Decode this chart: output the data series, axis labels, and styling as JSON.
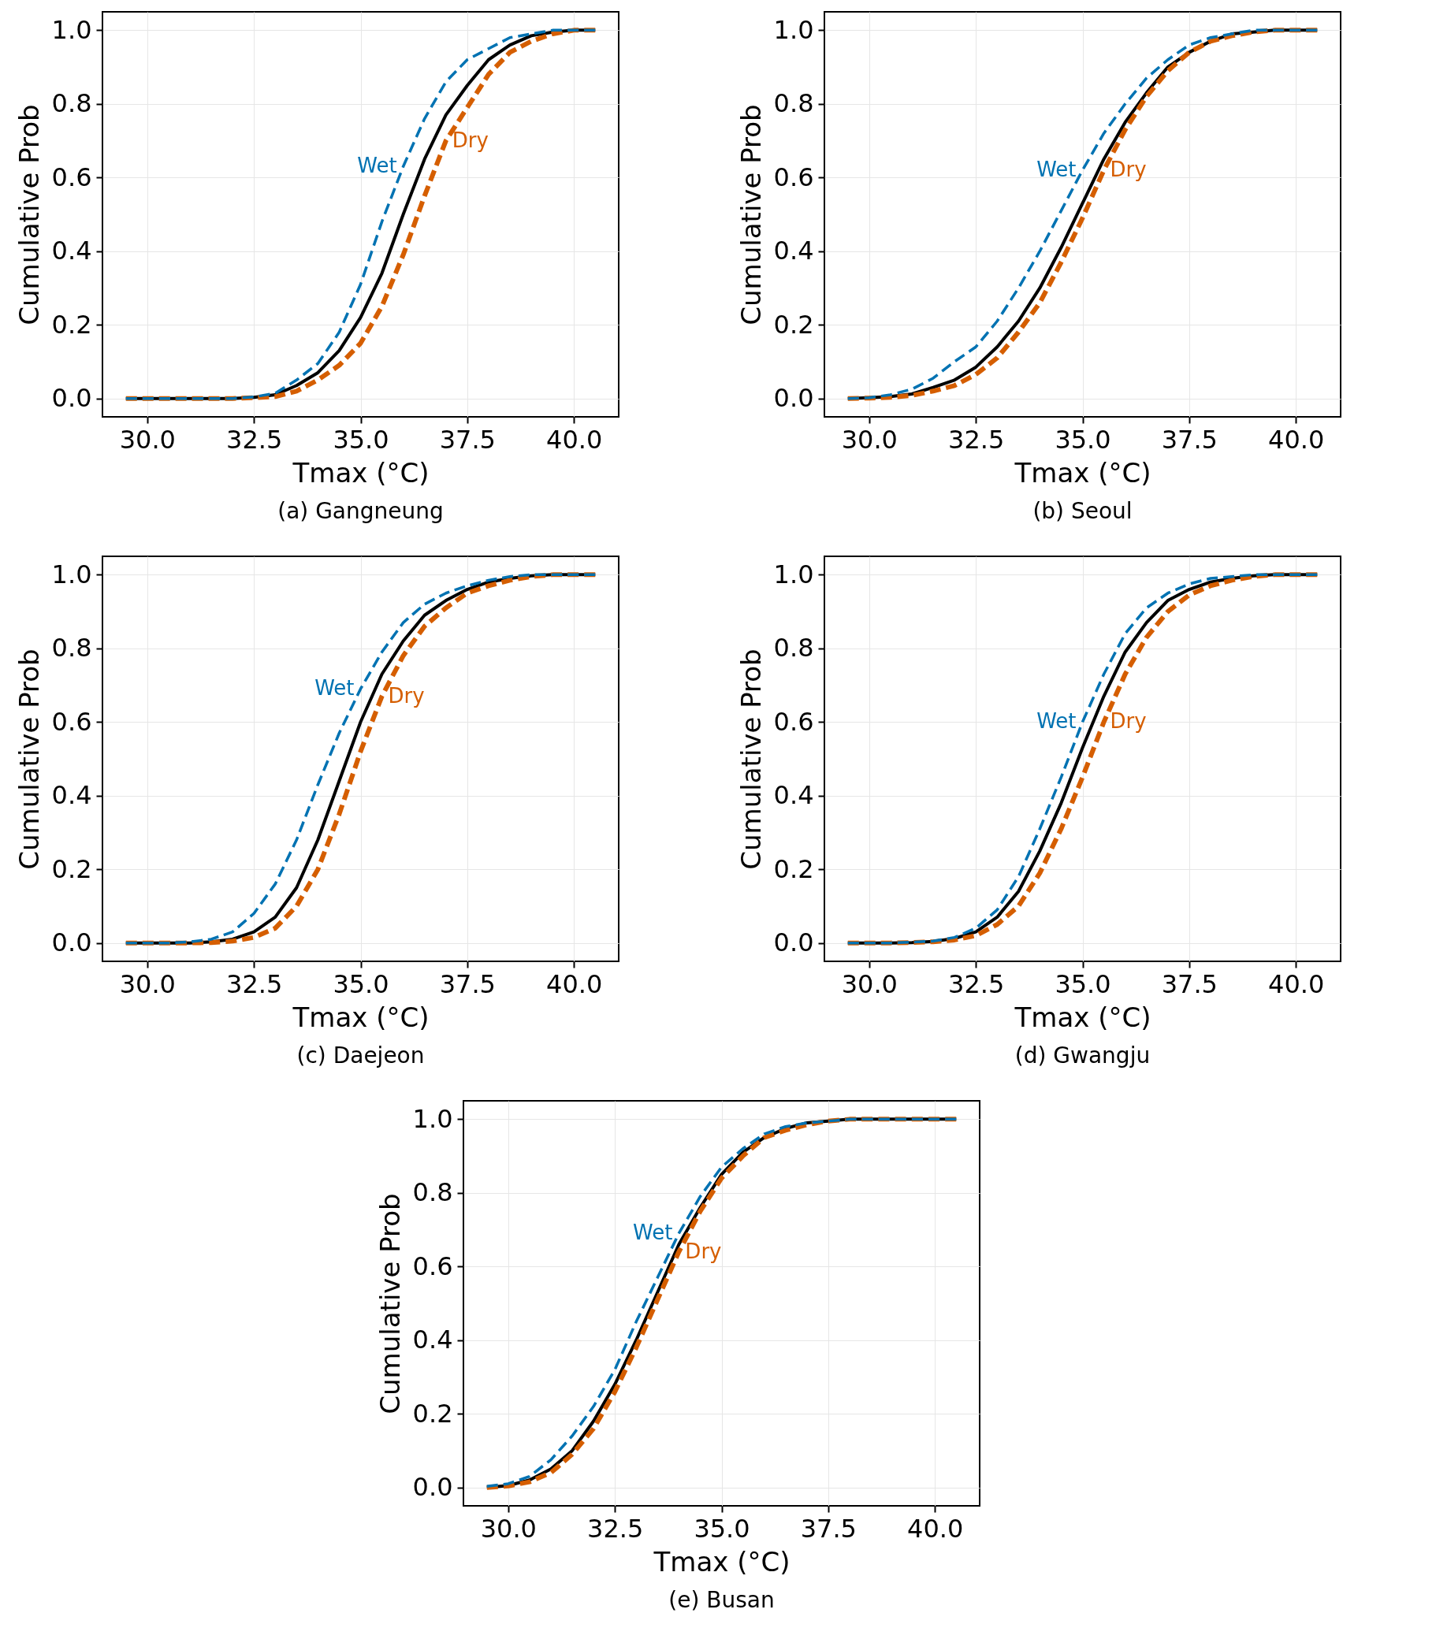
{
  "chart_data": [
    {
      "type": "line",
      "title": "(a) Gangneung",
      "xlabel": "Tmax (°C)",
      "ylabel": "Cumulative Prob",
      "grid": true,
      "xlim": [
        28.95,
        41.05
      ],
      "ylim": [
        -0.05,
        1.05
      ],
      "xticks": [
        {
          "value": 30,
          "label": "30.0"
        },
        {
          "value": 32.5,
          "label": "32.5"
        },
        {
          "value": 35,
          "label": "35.0"
        },
        {
          "value": 37.5,
          "label": "37.5"
        },
        {
          "value": 40,
          "label": "40.0"
        }
      ],
      "yticks": [
        {
          "value": 0,
          "label": "0.0"
        },
        {
          "value": 0.2,
          "label": "0.2"
        },
        {
          "value": 0.4,
          "label": "0.4"
        },
        {
          "value": 0.6,
          "label": "0.6"
        },
        {
          "value": 0.8,
          "label": "0.8"
        },
        {
          "value": 1,
          "label": "1.0"
        }
      ],
      "x": [
        29.5,
        30,
        30.5,
        31,
        31.5,
        32,
        32.5,
        33,
        33.5,
        34,
        34.5,
        35,
        35.5,
        36,
        36.5,
        37,
        37.5,
        38,
        38.5,
        39,
        39.5,
        40,
        40.5
      ],
      "series": [
        {
          "color": "#000000",
          "line_style": "solid",
          "values": [
            0,
            0,
            0,
            0,
            0,
            0,
            0.003,
            0.01,
            0.035,
            0.07,
            0.13,
            0.22,
            0.34,
            0.5,
            0.65,
            0.77,
            0.85,
            0.92,
            0.96,
            0.985,
            0.995,
            1,
            1
          ]
        },
        {
          "name": "Wet",
          "color": "#0072b2",
          "line_style": "dashed",
          "values": [
            0,
            0,
            0,
            0,
            0,
            0,
            0.004,
            0.014,
            0.05,
            0.095,
            0.18,
            0.31,
            0.48,
            0.63,
            0.76,
            0.86,
            0.92,
            0.95,
            0.98,
            0.99,
            1,
            1,
            1
          ]
        },
        {
          "name": "Dry",
          "color": "#d55e00",
          "line_style": "dashed",
          "values": [
            0,
            0,
            0,
            0,
            0,
            0,
            0.002,
            0.005,
            0.02,
            0.05,
            0.09,
            0.15,
            0.25,
            0.39,
            0.55,
            0.7,
            0.79,
            0.88,
            0.94,
            0.97,
            0.99,
            1,
            1
          ]
        }
      ]
    },
    {
      "type": "line",
      "title": "(b) Seoul",
      "xlabel": "Tmax (°C)",
      "ylabel": "Cumulative Prob",
      "grid": true,
      "xlim": [
        28.95,
        41.05
      ],
      "ylim": [
        -0.05,
        1.05
      ],
      "xticks": [
        {
          "value": 30,
          "label": "30.0"
        },
        {
          "value": 32.5,
          "label": "32.5"
        },
        {
          "value": 35,
          "label": "35.0"
        },
        {
          "value": 37.5,
          "label": "37.5"
        },
        {
          "value": 40,
          "label": "40.0"
        }
      ],
      "yticks": [
        {
          "value": 0,
          "label": "0.0"
        },
        {
          "value": 0.2,
          "label": "0.2"
        },
        {
          "value": 0.4,
          "label": "0.4"
        },
        {
          "value": 0.6,
          "label": "0.6"
        },
        {
          "value": 0.8,
          "label": "0.8"
        },
        {
          "value": 1,
          "label": "1.0"
        }
      ],
      "x": [
        29.5,
        30,
        30.5,
        31,
        31.5,
        32,
        32.5,
        33,
        33.5,
        34,
        34.5,
        35,
        35.5,
        36,
        36.5,
        37,
        37.5,
        38,
        38.5,
        39,
        39.5,
        40,
        40.5
      ],
      "series": [
        {
          "color": "#000000",
          "line_style": "solid",
          "values": [
            0,
            0.002,
            0.005,
            0.012,
            0.03,
            0.05,
            0.085,
            0.14,
            0.21,
            0.3,
            0.41,
            0.53,
            0.65,
            0.75,
            0.83,
            0.9,
            0.94,
            0.97,
            0.99,
            0.995,
            1,
            1,
            1
          ]
        },
        {
          "name": "Wet",
          "color": "#0072b2",
          "line_style": "dashed",
          "values": [
            0,
            0.002,
            0.01,
            0.025,
            0.055,
            0.1,
            0.14,
            0.21,
            0.3,
            0.4,
            0.51,
            0.62,
            0.72,
            0.8,
            0.87,
            0.92,
            0.96,
            0.98,
            0.99,
            1,
            1,
            1,
            1
          ]
        },
        {
          "name": "Dry",
          "color": "#d55e00",
          "line_style": "dashed",
          "values": [
            0,
            0.001,
            0.003,
            0.008,
            0.02,
            0.035,
            0.065,
            0.11,
            0.18,
            0.26,
            0.37,
            0.49,
            0.62,
            0.73,
            0.82,
            0.89,
            0.94,
            0.97,
            0.985,
            0.995,
            1,
            1,
            1
          ]
        }
      ]
    },
    {
      "type": "line",
      "title": "(c) Daejeon",
      "xlabel": "Tmax (°C)",
      "ylabel": "Cumulative Prob",
      "grid": true,
      "xlim": [
        28.95,
        41.05
      ],
      "ylim": [
        -0.05,
        1.05
      ],
      "xticks": [
        {
          "value": 30,
          "label": "30.0"
        },
        {
          "value": 32.5,
          "label": "32.5"
        },
        {
          "value": 35,
          "label": "35.0"
        },
        {
          "value": 37.5,
          "label": "37.5"
        },
        {
          "value": 40,
          "label": "40.0"
        }
      ],
      "yticks": [
        {
          "value": 0,
          "label": "0.0"
        },
        {
          "value": 0.2,
          "label": "0.2"
        },
        {
          "value": 0.4,
          "label": "0.4"
        },
        {
          "value": 0.6,
          "label": "0.6"
        },
        {
          "value": 0.8,
          "label": "0.8"
        },
        {
          "value": 1,
          "label": "1.0"
        }
      ],
      "x": [
        29.5,
        30,
        30.5,
        31,
        31.5,
        32,
        32.5,
        33,
        33.5,
        34,
        34.5,
        35,
        35.5,
        36,
        36.5,
        37,
        37.5,
        38,
        38.5,
        39,
        39.5,
        40,
        40.5
      ],
      "series": [
        {
          "color": "#000000",
          "line_style": "solid",
          "values": [
            0,
            0,
            0,
            0,
            0.003,
            0.01,
            0.03,
            0.07,
            0.15,
            0.28,
            0.44,
            0.6,
            0.73,
            0.82,
            0.89,
            0.93,
            0.96,
            0.98,
            0.99,
            0.997,
            1,
            1,
            1
          ]
        },
        {
          "name": "Wet",
          "color": "#0072b2",
          "line_style": "dashed",
          "values": [
            0,
            0,
            0,
            0.003,
            0.01,
            0.03,
            0.08,
            0.16,
            0.28,
            0.43,
            0.57,
            0.69,
            0.79,
            0.87,
            0.92,
            0.95,
            0.97,
            0.985,
            0.995,
            1,
            1,
            1,
            1
          ]
        },
        {
          "name": "Dry",
          "color": "#d55e00",
          "line_style": "dashed",
          "values": [
            0,
            0,
            0,
            0,
            0.001,
            0.005,
            0.015,
            0.04,
            0.1,
            0.2,
            0.35,
            0.52,
            0.67,
            0.78,
            0.86,
            0.91,
            0.95,
            0.97,
            0.985,
            0.995,
            1,
            1,
            1
          ]
        }
      ]
    },
    {
      "type": "line",
      "title": "(d) Gwangju",
      "xlabel": "Tmax (°C)",
      "ylabel": "Cumulative Prob",
      "grid": true,
      "xlim": [
        28.95,
        41.05
      ],
      "ylim": [
        -0.05,
        1.05
      ],
      "xticks": [
        {
          "value": 30,
          "label": "30.0"
        },
        {
          "value": 32.5,
          "label": "32.5"
        },
        {
          "value": 35,
          "label": "35.0"
        },
        {
          "value": 37.5,
          "label": "37.5"
        },
        {
          "value": 40,
          "label": "40.0"
        }
      ],
      "yticks": [
        {
          "value": 0,
          "label": "0.0"
        },
        {
          "value": 0.2,
          "label": "0.2"
        },
        {
          "value": 0.4,
          "label": "0.4"
        },
        {
          "value": 0.6,
          "label": "0.6"
        },
        {
          "value": 0.8,
          "label": "0.8"
        },
        {
          "value": 1,
          "label": "1.0"
        }
      ],
      "x": [
        29.5,
        30,
        30.5,
        31,
        31.5,
        32,
        32.5,
        33,
        33.5,
        34,
        34.5,
        35,
        35.5,
        36,
        36.5,
        37,
        37.5,
        38,
        38.5,
        39,
        39.5,
        40,
        40.5
      ],
      "series": [
        {
          "color": "#000000",
          "line_style": "solid",
          "values": [
            0,
            0,
            0,
            0.001,
            0.004,
            0.012,
            0.03,
            0.07,
            0.14,
            0.25,
            0.38,
            0.53,
            0.67,
            0.79,
            0.87,
            0.93,
            0.96,
            0.98,
            0.99,
            0.997,
            1,
            1,
            1
          ]
        },
        {
          "name": "Wet",
          "color": "#0072b2",
          "line_style": "dashed",
          "values": [
            0,
            0,
            0,
            0.002,
            0.005,
            0.015,
            0.04,
            0.09,
            0.18,
            0.31,
            0.45,
            0.6,
            0.73,
            0.84,
            0.91,
            0.95,
            0.975,
            0.99,
            0.995,
            1,
            1,
            1,
            1
          ]
        },
        {
          "name": "Dry",
          "color": "#d55e00",
          "line_style": "dashed",
          "values": [
            0,
            0,
            0,
            0.001,
            0.003,
            0.008,
            0.02,
            0.05,
            0.1,
            0.19,
            0.31,
            0.45,
            0.6,
            0.73,
            0.83,
            0.9,
            0.945,
            0.97,
            0.985,
            0.995,
            1,
            1,
            1
          ]
        }
      ]
    },
    {
      "type": "line",
      "title": "(e) Busan",
      "xlabel": "Tmax (°C)",
      "ylabel": "Cumulative Prob",
      "grid": true,
      "xlim": [
        28.95,
        41.05
      ],
      "ylim": [
        -0.05,
        1.05
      ],
      "xticks": [
        {
          "value": 30,
          "label": "30.0"
        },
        {
          "value": 32.5,
          "label": "32.5"
        },
        {
          "value": 35,
          "label": "35.0"
        },
        {
          "value": 37.5,
          "label": "37.5"
        },
        {
          "value": 40,
          "label": "40.0"
        }
      ],
      "yticks": [
        {
          "value": 0,
          "label": "0.0"
        },
        {
          "value": 0.2,
          "label": "0.2"
        },
        {
          "value": 0.4,
          "label": "0.4"
        },
        {
          "value": 0.6,
          "label": "0.6"
        },
        {
          "value": 0.8,
          "label": "0.8"
        },
        {
          "value": 1,
          "label": "1.0"
        }
      ],
      "x": [
        29.5,
        30,
        30.5,
        31,
        31.5,
        32,
        32.5,
        33,
        33.5,
        34,
        34.5,
        35,
        35.5,
        36,
        36.5,
        37,
        37.5,
        38,
        38.5,
        39,
        39.5,
        40,
        40.5
      ],
      "series": [
        {
          "color": "#000000",
          "line_style": "solid",
          "values": [
            0,
            0.005,
            0.02,
            0.05,
            0.1,
            0.18,
            0.28,
            0.4,
            0.53,
            0.66,
            0.76,
            0.85,
            0.91,
            0.95,
            0.975,
            0.99,
            0.995,
            1,
            1,
            1,
            1,
            1,
            1
          ]
        },
        {
          "name": "Wet",
          "color": "#0072b2",
          "line_style": "dashed",
          "values": [
            0.003,
            0.01,
            0.03,
            0.075,
            0.14,
            0.22,
            0.32,
            0.45,
            0.57,
            0.69,
            0.79,
            0.87,
            0.92,
            0.96,
            0.98,
            0.99,
            0.995,
            1,
            1,
            1,
            1,
            1,
            1
          ]
        },
        {
          "name": "Dry",
          "color": "#d55e00",
          "line_style": "dashed",
          "values": [
            0,
            0.004,
            0.015,
            0.04,
            0.09,
            0.16,
            0.26,
            0.38,
            0.51,
            0.64,
            0.75,
            0.84,
            0.9,
            0.95,
            0.97,
            0.985,
            0.995,
            1,
            1,
            1,
            1,
            1,
            1
          ]
        }
      ]
    }
  ]
}
